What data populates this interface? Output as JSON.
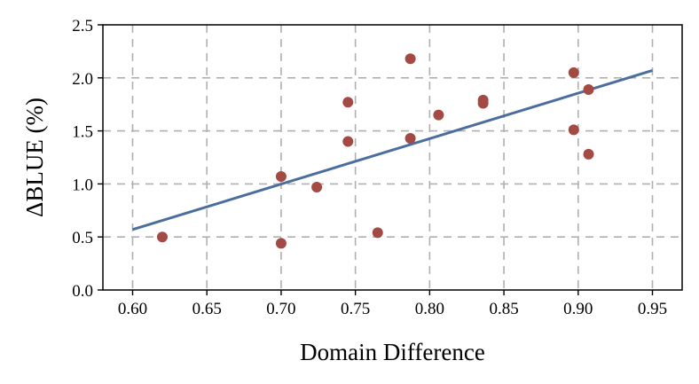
{
  "chart_data": {
    "type": "scatter",
    "xlabel": "Domain Difference",
    "ylabel": "ΔBLUE (%)",
    "xlim": [
      0.58,
      0.97
    ],
    "ylim": [
      0.0,
      2.5
    ],
    "xticks": [
      "0.60",
      "0.65",
      "0.70",
      "0.75",
      "0.80",
      "0.85",
      "0.90",
      "0.95"
    ],
    "yticks": [
      "0.0",
      "0.5",
      "1.0",
      "1.5",
      "2.0",
      "2.5"
    ],
    "grid": true,
    "colors": {
      "points": "#a34a44",
      "fit_line": "#4c6e9e"
    },
    "points": [
      {
        "x": 0.62,
        "y": 0.5
      },
      {
        "x": 0.7,
        "y": 1.07
      },
      {
        "x": 0.7,
        "y": 0.44
      },
      {
        "x": 0.724,
        "y": 0.97
      },
      {
        "x": 0.745,
        "y": 1.77
      },
      {
        "x": 0.745,
        "y": 1.4
      },
      {
        "x": 0.765,
        "y": 0.54
      },
      {
        "x": 0.787,
        "y": 2.18
      },
      {
        "x": 0.787,
        "y": 1.43
      },
      {
        "x": 0.806,
        "y": 1.65
      },
      {
        "x": 0.836,
        "y": 1.79
      },
      {
        "x": 0.836,
        "y": 1.76
      },
      {
        "x": 0.897,
        "y": 2.05
      },
      {
        "x": 0.897,
        "y": 1.51
      },
      {
        "x": 0.907,
        "y": 1.89
      },
      {
        "x": 0.907,
        "y": 1.28
      }
    ],
    "fit_line": {
      "x": [
        0.6,
        0.95
      ],
      "y": [
        0.57,
        2.07
      ]
    }
  }
}
